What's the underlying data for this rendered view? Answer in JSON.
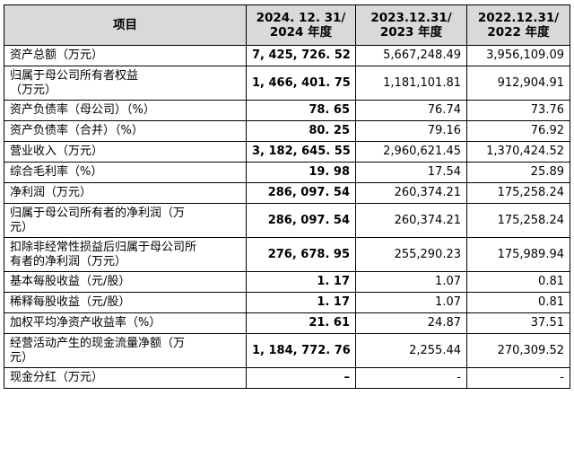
{
  "headers": [
    "项目",
    "2024. 12. 31/\n2024 年度",
    "2023.12.31/\n2023 年度",
    "2022.12.31/\n2022 年度"
  ],
  "rows": [
    {
      "item": "资产总额（万元）",
      "v2024": "7, 425, 726. 52",
      "v2023": "5,667,248.49",
      "v2022": "3,956,109.09",
      "tall": false
    },
    {
      "item": "归属于母公司所有者权益\n（万元）",
      "v2024": "1, 466, 401. 75",
      "v2023": "1,181,101.81",
      "v2022": "912,904.91",
      "tall": true
    },
    {
      "item": "资产负债率（母公司）（%）",
      "v2024": "78. 65",
      "v2023": "76.74",
      "v2022": "73.76",
      "tall": false
    },
    {
      "item": "资产负债率（合并）（%）",
      "v2024": "80. 25",
      "v2023": "79.16",
      "v2022": "76.92",
      "tall": false
    },
    {
      "item": "营业收入（万元）",
      "v2024": "3, 182, 645. 55",
      "v2023": "2,960,621.45",
      "v2022": "1,370,424.52",
      "tall": false
    },
    {
      "item": "综合毛利率（%）",
      "v2024": "19. 98",
      "v2023": "17.54",
      "v2022": "25.89",
      "tall": false
    },
    {
      "item": "净利润（万元）",
      "v2024": "286, 097. 54",
      "v2023": "260,374.21",
      "v2022": "175,258.24",
      "tall": false
    },
    {
      "item": "归属于母公司所有者的净利润（万\n元）",
      "v2024": "286, 097. 54",
      "v2023": "260,374.21",
      "v2022": "175,258.24",
      "tall": true
    },
    {
      "item": "扣除非经常性损益后归属于母公司所\n有者的净利润（万元）",
      "v2024": "276, 678. 95",
      "v2023": "255,290.23",
      "v2022": "175,989.94",
      "tall": true
    },
    {
      "item": "基本每股收益（元/股）",
      "v2024": "1. 17",
      "v2023": "1.07",
      "v2022": "0.81",
      "tall": false
    },
    {
      "item": "稀释每股收益（元/股）",
      "v2024": "1. 17",
      "v2023": "1.07",
      "v2022": "0.81",
      "tall": false
    },
    {
      "item": "加权平均净资产收益率（%）",
      "v2024": "21. 61",
      "v2023": "24.87",
      "v2022": "37.51",
      "tall": false
    },
    {
      "item": "经营活动产生的现金流量净额（万\n元）",
      "v2024": "1, 184, 772. 76",
      "v2023": "2,255.44",
      "v2022": "270,309.52",
      "tall": true
    },
    {
      "item": "现金分红（万元）",
      "v2024": "–",
      "v2023": "-",
      "v2022": "-",
      "tall": false
    }
  ]
}
